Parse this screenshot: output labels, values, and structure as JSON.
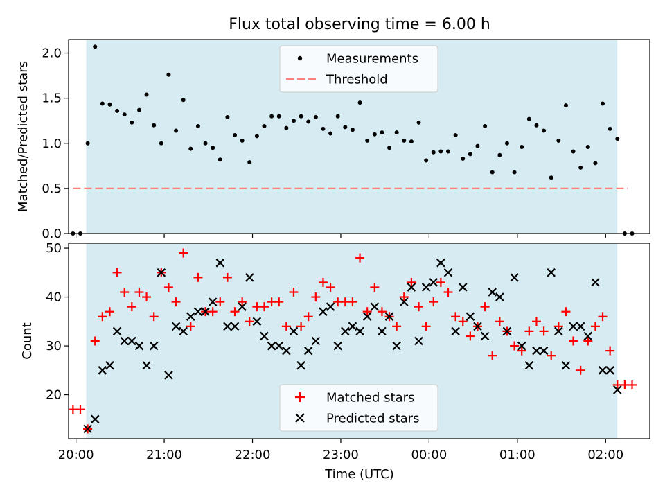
{
  "chart_data": [
    {
      "type": "scatter",
      "title": "Flux total observing time = 6.00 h",
      "ylabel": "Matched/Predicted stars",
      "xlabel": "",
      "ylim": [
        0,
        2.15
      ],
      "yticks": [
        "0.0",
        "0.5",
        "1.0",
        "1.5",
        "2.0"
      ],
      "xlim": [
        "19:55",
        "26:30"
      ],
      "observing_window": [
        "20:07",
        "26:08"
      ],
      "legend_position": "upper center",
      "legend": [
        "Measurements",
        "Threshold"
      ],
      "threshold": {
        "name": "Threshold",
        "value": 0.5,
        "x_range": [
          "19:58",
          "26:15"
        ],
        "color": "#ff7f7f"
      },
      "series": [
        {
          "name": "Measurements",
          "color": "#000000",
          "x": [
            "19:58",
            "20:03",
            "20:08",
            "20:13",
            "20:18",
            "20:23",
            "20:28",
            "20:33",
            "20:38",
            "20:43",
            "20:48",
            "20:53",
            "20:58",
            "21:03",
            "21:08",
            "21:13",
            "21:18",
            "21:23",
            "21:28",
            "21:33",
            "21:38",
            "21:43",
            "21:48",
            "21:53",
            "21:58",
            "22:03",
            "22:08",
            "22:13",
            "22:18",
            "22:23",
            "22:28",
            "22:33",
            "22:38",
            "22:43",
            "22:48",
            "22:53",
            "22:58",
            "23:03",
            "23:08",
            "23:13",
            "23:18",
            "23:23",
            "23:28",
            "23:33",
            "23:38",
            "23:43",
            "23:48",
            "23:53",
            "23:58",
            "24:03",
            "24:08",
            "24:13",
            "24:18",
            "24:23",
            "24:28",
            "24:33",
            "24:38",
            "24:43",
            "24:48",
            "24:53",
            "24:58",
            "25:03",
            "25:08",
            "25:13",
            "25:18",
            "25:23",
            "25:28",
            "25:33",
            "25:38",
            "25:43",
            "25:48",
            "25:53",
            "25:58",
            "26:03",
            "26:08",
            "26:13",
            "26:18"
          ],
          "y": [
            0.0,
            0.0,
            1.0,
            2.07,
            1.44,
            1.43,
            1.36,
            1.32,
            1.23,
            1.37,
            1.54,
            1.2,
            1.0,
            1.76,
            1.14,
            1.48,
            0.94,
            1.19,
            1.0,
            0.95,
            0.82,
            1.29,
            1.09,
            1.03,
            0.79,
            1.08,
            1.19,
            1.3,
            1.3,
            1.17,
            1.25,
            1.3,
            1.24,
            1.29,
            1.16,
            1.11,
            1.3,
            1.18,
            1.15,
            1.45,
            1.03,
            1.1,
            1.12,
            0.95,
            1.12,
            1.03,
            1.02,
            1.23,
            0.81,
            0.9,
            0.91,
            0.91,
            1.09,
            0.83,
            0.88,
            0.97,
            1.19,
            0.68,
            0.87,
            1.0,
            0.68,
            0.96,
            1.27,
            1.2,
            1.14,
            0.62,
            1.03,
            1.42,
            0.91,
            0.73,
            0.96,
            0.78,
            1.44,
            1.16,
            1.05,
            0.0,
            0.0
          ]
        }
      ]
    },
    {
      "type": "scatter",
      "title": "",
      "ylabel": "Count",
      "xlabel": "Time (UTC)",
      "ylim": [
        11,
        51
      ],
      "yticks": [
        "20",
        "30",
        "40",
        "50"
      ],
      "xlim": [
        "19:55",
        "26:30"
      ],
      "xticks": [
        "20:00",
        "21:00",
        "22:00",
        "23:00",
        "00:00",
        "01:00",
        "02:00"
      ],
      "observing_window": [
        "20:07",
        "26:08"
      ],
      "legend_position": "lower center",
      "legend": [
        "Matched stars",
        "Predicted stars"
      ],
      "series": [
        {
          "name": "Matched stars",
          "marker": "+",
          "color": "#ff0000",
          "x": [
            "19:58",
            "20:03",
            "20:08",
            "20:13",
            "20:18",
            "20:23",
            "20:28",
            "20:33",
            "20:38",
            "20:43",
            "20:48",
            "20:53",
            "20:58",
            "21:03",
            "21:08",
            "21:13",
            "21:18",
            "21:23",
            "21:28",
            "21:33",
            "21:38",
            "21:43",
            "21:48",
            "21:53",
            "21:58",
            "22:03",
            "22:08",
            "22:13",
            "22:18",
            "22:23",
            "22:28",
            "22:33",
            "22:38",
            "22:43",
            "22:48",
            "22:53",
            "22:58",
            "23:03",
            "23:08",
            "23:13",
            "23:18",
            "23:23",
            "23:28",
            "23:33",
            "23:38",
            "23:43",
            "23:48",
            "23:53",
            "23:58",
            "24:03",
            "24:08",
            "24:13",
            "24:18",
            "24:23",
            "24:28",
            "24:33",
            "24:38",
            "24:43",
            "24:48",
            "24:53",
            "24:58",
            "25:03",
            "25:08",
            "25:13",
            "25:18",
            "25:23",
            "25:28",
            "25:33",
            "25:38",
            "25:43",
            "25:48",
            "25:53",
            "25:58",
            "26:03",
            "26:08",
            "26:13",
            "26:18"
          ],
          "y": [
            17,
            17,
            13,
            31,
            36,
            37,
            45,
            41,
            38,
            41,
            40,
            36,
            45,
            42,
            39,
            49,
            34,
            44,
            37,
            37,
            39,
            44,
            37,
            39,
            35,
            38,
            38,
            39,
            39,
            34,
            41,
            34,
            36,
            40,
            43,
            42,
            39,
            39,
            39,
            48,
            37,
            42,
            37,
            36,
            34,
            40,
            43,
            38,
            34,
            39,
            43,
            41,
            36,
            35,
            32,
            34,
            38,
            28,
            35,
            33,
            30,
            29,
            33,
            35,
            33,
            28,
            34,
            37,
            31,
            25,
            31,
            34,
            36,
            29,
            22,
            22,
            22
          ]
        },
        {
          "name": "Predicted stars",
          "marker": "x",
          "color": "#000000",
          "x": [
            "20:08",
            "20:13",
            "20:18",
            "20:23",
            "20:28",
            "20:33",
            "20:38",
            "20:43",
            "20:48",
            "20:53",
            "20:58",
            "21:03",
            "21:08",
            "21:13",
            "21:18",
            "21:23",
            "21:28",
            "21:33",
            "21:38",
            "21:43",
            "21:48",
            "21:53",
            "21:58",
            "22:03",
            "22:08",
            "22:13",
            "22:18",
            "22:23",
            "22:28",
            "22:33",
            "22:38",
            "22:43",
            "22:48",
            "22:53",
            "22:58",
            "23:03",
            "23:08",
            "23:13",
            "23:18",
            "23:23",
            "23:28",
            "23:33",
            "23:38",
            "23:43",
            "23:48",
            "23:53",
            "23:58",
            "24:03",
            "24:08",
            "24:13",
            "24:18",
            "24:23",
            "24:28",
            "24:33",
            "24:38",
            "24:43",
            "24:48",
            "24:53",
            "24:58",
            "25:03",
            "25:08",
            "25:13",
            "25:18",
            "25:23",
            "25:28",
            "25:33",
            "25:38",
            "25:43",
            "25:48",
            "25:53",
            "25:58",
            "26:03",
            "26:08"
          ],
          "y": [
            13,
            15,
            25,
            26,
            33,
            31,
            31,
            30,
            26,
            30,
            45,
            24,
            34,
            33,
            36,
            37,
            37,
            39,
            47,
            34,
            34,
            38,
            44,
            35,
            32,
            30,
            30,
            29,
            33,
            26,
            29,
            31,
            37,
            38,
            30,
            33,
            34,
            33,
            36,
            38,
            33,
            36,
            30,
            39,
            42,
            31,
            42,
            43,
            47,
            45,
            33,
            42,
            36,
            34,
            32,
            41,
            40,
            33,
            44,
            30,
            26,
            29,
            29,
            45,
            33,
            26,
            34,
            34,
            32,
            43,
            25,
            25,
            21
          ]
        }
      ]
    }
  ]
}
